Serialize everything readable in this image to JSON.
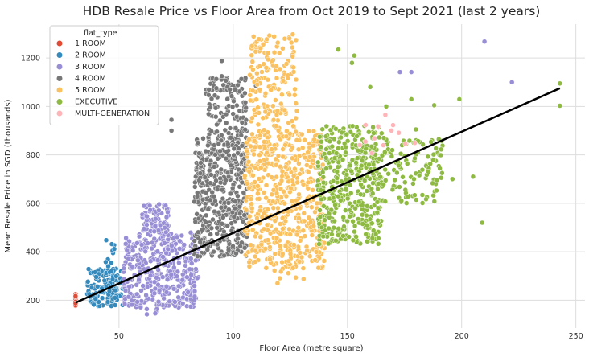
{
  "chart_data": {
    "type": "scatter",
    "title": "HDB Resale Price vs Floor Area from Oct 2019 to Sept 2021 (last 2 years)",
    "xlabel": "Floor Area (metre square)",
    "ylabel": "Mean Resale Price in SGD (thousands)",
    "xlim": [
      18,
      254
    ],
    "ylim": [
      85,
      1340
    ],
    "xticks": [
      50,
      100,
      150,
      200,
      250
    ],
    "yticks": [
      200,
      400,
      600,
      800,
      1000,
      1200
    ],
    "grid": true,
    "legend": {
      "title": "flat_type",
      "position": "top-left"
    },
    "series": [
      {
        "name": "1 ROOM",
        "color": "#e24a33",
        "clusters": [
          {
            "x": [
              31,
              31
            ],
            "y": [
              165,
              225
            ],
            "n": 14
          }
        ]
      },
      {
        "name": "2 ROOM",
        "color": "#348abd",
        "clusters": [
          {
            "x": [
              36,
              52
            ],
            "y": [
              175,
              330
            ],
            "n": 140
          },
          {
            "x": [
              44,
              48
            ],
            "y": [
              340,
              450
            ],
            "n": 10
          }
        ]
      },
      {
        "name": "3 ROOM",
        "color": "#988ed5",
        "clusters": [
          {
            "x": [
              52,
              85
            ],
            "y": [
              170,
              480
            ],
            "n": 380
          },
          {
            "x": [
              60,
              72
            ],
            "y": [
              480,
              600
            ],
            "n": 70
          },
          {
            "x": [
              62,
              67
            ],
            "y": [
              140,
              170
            ],
            "n": 5
          }
        ],
        "points": [
          [
            210,
            1268
          ],
          [
            222,
            1100
          ],
          [
            173,
            1142
          ],
          [
            178,
            1142
          ]
        ]
      },
      {
        "name": "4 ROOM",
        "color": "#777777",
        "clusters": [
          {
            "x": [
              83,
              106
            ],
            "y": [
              380,
              870
            ],
            "n": 480
          },
          {
            "x": [
              88,
              106
            ],
            "y": [
              870,
              1120
            ],
            "n": 120
          }
        ],
        "points": [
          [
            95,
            1188
          ],
          [
            73,
            945
          ],
          [
            73,
            900
          ],
          [
            124,
            890
          ],
          [
            102,
            1088
          ],
          [
            95,
            1125
          ],
          [
            110,
            1085
          ]
        ]
      },
      {
        "name": "5 ROOM",
        "color": "#fbc15e",
        "clusters": [
          {
            "x": [
              105,
              140
            ],
            "y": [
              330,
              900
            ],
            "n": 560
          },
          {
            "x": [
              107,
              128
            ],
            "y": [
              900,
              1300
            ],
            "n": 160
          },
          {
            "x": [
              118,
              132
            ],
            "y": [
              270,
              330
            ],
            "n": 8
          }
        ]
      },
      {
        "name": "EXECUTIVE",
        "color": "#8eba42",
        "clusters": [
          {
            "x": [
              137,
              165
            ],
            "y": [
              430,
              920
            ],
            "n": 420
          },
          {
            "x": [
              165,
              192
            ],
            "y": [
              600,
              870
            ],
            "n": 110
          }
        ],
        "points": [
          [
            146,
            1235
          ],
          [
            153,
            1210
          ],
          [
            152,
            1180
          ],
          [
            178,
            1030
          ],
          [
            199,
            1030
          ],
          [
            243,
            1095
          ],
          [
            243,
            1003
          ],
          [
            188,
            1005
          ],
          [
            180,
            905
          ],
          [
            190,
            865
          ],
          [
            160,
            1080
          ],
          [
            167,
            1000
          ],
          [
            205,
            710
          ],
          [
            196,
            700
          ],
          [
            209,
            520
          ]
        ]
      },
      {
        "name": "MULTI-GENERATION",
        "color": "#ffb5b8",
        "clusters": [
          {
            "x": [
              155,
              180
            ],
            "y": [
              800,
              975
            ],
            "n": 14
          }
        ]
      }
    ],
    "regression_line": {
      "x": [
        31,
        243
      ],
      "y": [
        190,
        1075
      ],
      "color": "#000000"
    }
  }
}
